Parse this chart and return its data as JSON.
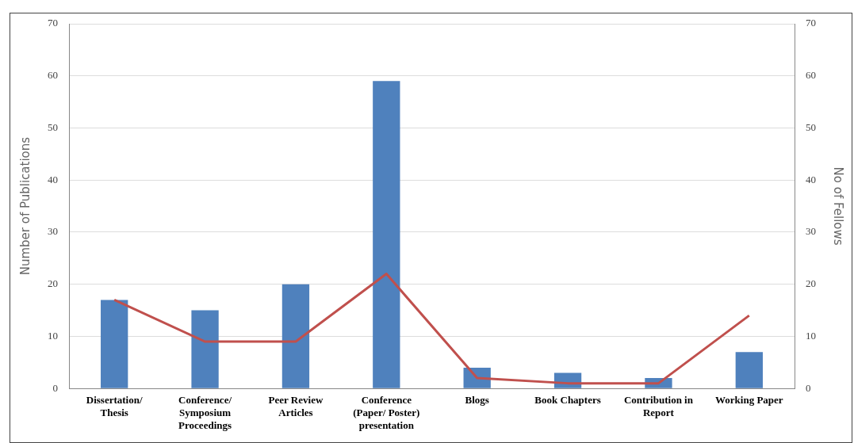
{
  "chart_data": {
    "type": "bar",
    "ylabel": "Number of Publications",
    "y2label": "No of Fellows",
    "categories": [
      "Dissertation/\nThesis",
      "Conference/\nSymposium\nProceedings",
      "Peer Review\nArticles",
      "Conference\n(Paper/ Poster)\npresentation",
      "Blogs",
      "Book Chapters",
      "Contribution in\nReport",
      "Working Paper"
    ],
    "series": [
      {
        "color": "#4f81bd",
        "values": [
          17,
          15,
          20,
          59,
          4,
          3,
          2,
          7
        ]
      },
      {
        "type": "line",
        "axis": "y2",
        "color": "#c0504d",
        "values": [
          17,
          9,
          9,
          22,
          2,
          1,
          1,
          14
        ]
      }
    ],
    "ylim": [
      0,
      70
    ],
    "yticks": [
      0,
      10,
      20,
      30,
      40,
      50,
      60,
      70
    ],
    "y2lim": [
      0,
      70
    ],
    "y2ticks": [
      0,
      10,
      20,
      30,
      40,
      50,
      60,
      70
    ],
    "grid": "y",
    "legend": false,
    "marker": "none"
  }
}
